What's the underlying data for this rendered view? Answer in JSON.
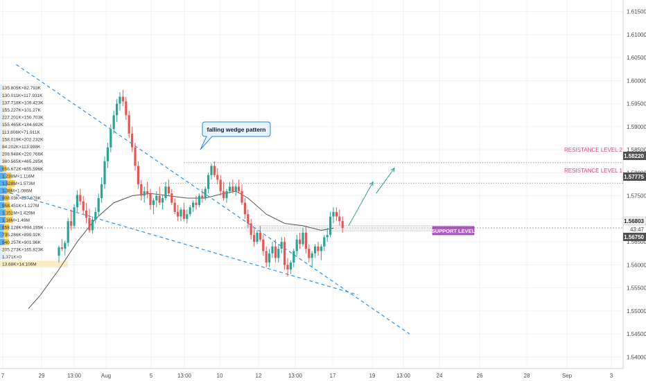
{
  "chart_data": {
    "type": "candlestick",
    "title": "",
    "y_axis": {
      "ticks": [
        "1.61500",
        "1.61000",
        "1.60500",
        "1.60000",
        "1.59500",
        "1.59000",
        "1.58500",
        "1.58000",
        "1.57500",
        "1.57000",
        "1.56500",
        "1.56000",
        "1.55500",
        "1.55000",
        "1.54500",
        "1.54000"
      ],
      "range": [
        1.5375,
        1.6175
      ]
    },
    "x_axis": {
      "ticks": [
        "7",
        "29",
        "13:00",
        "Aug",
        "5",
        "13:00",
        "10",
        "12",
        "13:00",
        "17",
        "19",
        "13:00",
        "24",
        "26",
        "28",
        "Sep",
        "3"
      ]
    },
    "price_labels": {
      "resistance_2": "1.58220",
      "resistance_1": "1.57775",
      "current": "1.56803",
      "countdown": "43:47",
      "low": "1.56750"
    },
    "annotations": {
      "callout": "falling wedge pattern",
      "resistance_2": "RESISTANCE LEVEL 2",
      "resistance_1": "RESISTANCE LEVEL 1",
      "support": "SUPPORT LEVEL"
    },
    "levels": {
      "resistance_2": 1.5822,
      "resistance_1": 1.57775,
      "support": 1.56803
    },
    "volume_profile": [
      "135.805K×82.793K",
      "130.011K×117.931K",
      "137.718K×109.423K",
      "155.227K×101.27K",
      "227.201K×150.703K",
      "155.465K×184.692K",
      "113.806K×71.911K",
      "158.019K×202.232K",
      "84.202K×113.998K",
      "208.948K×220.766K",
      "380.565K×465.285K",
      "656.672K×655.596K",
      "1.238M×1.116M",
      "1.528M×1.573M",
      "1.39M×1.086M",
      "908.03K×897.678K",
      "958.451K×1.127M",
      "1.151M×1.429M",
      "1.16M×1.49M",
      "858.128K×994.195K",
      "735.286K×899.92K",
      "940.257K×901.96K",
      "205.273K×165.823K",
      "1.371K×0",
      "13.68K×14.106M"
    ],
    "colors": {
      "up": "#26a69a",
      "down": "#ef5350",
      "ma": "#555555",
      "trend": "#2196f3",
      "resistance_text": "#e0457b",
      "support_bg": "#9c27b0"
    },
    "candle_series": [
      [
        0,
        1.562,
        1.5642,
        1.5605,
        1.5638
      ],
      [
        1,
        1.5638,
        1.5656,
        1.563,
        1.5635
      ],
      [
        2,
        1.5635,
        1.5653,
        1.562,
        1.5648
      ],
      [
        3,
        1.5648,
        1.5702,
        1.564,
        1.5695
      ],
      [
        4,
        1.5695,
        1.572,
        1.5675,
        1.5685
      ],
      [
        5,
        1.5685,
        1.5732,
        1.5678,
        1.5725
      ],
      [
        6,
        1.5725,
        1.5762,
        1.5715,
        1.5752
      ],
      [
        7,
        1.5752,
        1.5765,
        1.573,
        1.5738
      ],
      [
        8,
        1.5738,
        1.575,
        1.571,
        1.5718
      ],
      [
        9,
        1.5718,
        1.5735,
        1.569,
        1.5702
      ],
      [
        10,
        1.5702,
        1.5722,
        1.567,
        1.5675
      ],
      [
        11,
        1.5675,
        1.5705,
        1.5668,
        1.5698
      ],
      [
        12,
        1.5698,
        1.5725,
        1.569,
        1.5715
      ],
      [
        13,
        1.5715,
        1.5755,
        1.5705,
        1.5745
      ],
      [
        14,
        1.5745,
        1.579,
        1.5735,
        1.5775
      ],
      [
        15,
        1.5775,
        1.5835,
        1.5765,
        1.5825
      ],
      [
        16,
        1.5825,
        1.5865,
        1.581,
        1.5855
      ],
      [
        17,
        1.5855,
        1.5905,
        1.5845,
        1.5895
      ],
      [
        18,
        1.5895,
        1.5935,
        1.5885,
        1.5925
      ],
      [
        19,
        1.5925,
        1.596,
        1.591,
        1.595
      ],
      [
        20,
        1.595,
        1.5975,
        1.5935,
        1.5965
      ],
      [
        21,
        1.5965,
        1.598,
        1.5945,
        1.5955
      ],
      [
        22,
        1.5955,
        1.5965,
        1.5915,
        1.5925
      ],
      [
        23,
        1.5925,
        1.5935,
        1.5875,
        1.5885
      ],
      [
        24,
        1.5885,
        1.59,
        1.5845,
        1.5855
      ],
      [
        25,
        1.5855,
        1.5865,
        1.5805,
        1.5815
      ],
      [
        26,
        1.5815,
        1.5825,
        1.5765,
        1.5775
      ],
      [
        27,
        1.5775,
        1.5785,
        1.574,
        1.575
      ],
      [
        28,
        1.575,
        1.577,
        1.5735,
        1.576
      ],
      [
        29,
        1.576,
        1.578,
        1.5745,
        1.5755
      ],
      [
        30,
        1.5755,
        1.5765,
        1.572,
        1.573
      ],
      [
        31,
        1.573,
        1.5745,
        1.571,
        1.574
      ],
      [
        32,
        1.574,
        1.576,
        1.5725,
        1.575
      ],
      [
        33,
        1.575,
        1.577,
        1.573,
        1.5735
      ],
      [
        34,
        1.5735,
        1.575,
        1.572,
        1.5745
      ],
      [
        35,
        1.5745,
        1.578,
        1.574,
        1.577
      ],
      [
        36,
        1.577,
        1.5785,
        1.575,
        1.5755
      ],
      [
        37,
        1.5755,
        1.5765,
        1.573,
        1.5735
      ],
      [
        38,
        1.5735,
        1.5745,
        1.571,
        1.5715
      ],
      [
        39,
        1.5715,
        1.573,
        1.5695,
        1.5705
      ],
      [
        40,
        1.5705,
        1.5725,
        1.5695,
        1.572
      ],
      [
        41,
        1.572,
        1.5735,
        1.5695,
        1.57
      ],
      [
        42,
        1.57,
        1.572,
        1.569,
        1.571
      ],
      [
        43,
        1.571,
        1.573,
        1.5705,
        1.5725
      ],
      [
        44,
        1.5725,
        1.574,
        1.5715,
        1.5735
      ],
      [
        45,
        1.5735,
        1.575,
        1.572,
        1.573
      ],
      [
        46,
        1.573,
        1.5755,
        1.5725,
        1.575
      ],
      [
        47,
        1.575,
        1.5765,
        1.5735,
        1.5745
      ],
      [
        48,
        1.5745,
        1.577,
        1.574,
        1.5765
      ],
      [
        49,
        1.5765,
        1.58,
        1.5755,
        1.5795
      ],
      [
        50,
        1.5795,
        1.582,
        1.5785,
        1.5815
      ],
      [
        51,
        1.5815,
        1.5825,
        1.579,
        1.5795
      ],
      [
        52,
        1.5795,
        1.581,
        1.5775,
        1.5785
      ],
      [
        53,
        1.5785,
        1.5795,
        1.575,
        1.576
      ],
      [
        54,
        1.576,
        1.578,
        1.574,
        1.5745
      ],
      [
        55,
        1.5745,
        1.5765,
        1.5735,
        1.576
      ],
      [
        56,
        1.576,
        1.578,
        1.5755,
        1.577
      ],
      [
        57,
        1.577,
        1.5785,
        1.5755,
        1.576
      ],
      [
        58,
        1.576,
        1.5775,
        1.575,
        1.577
      ],
      [
        59,
        1.577,
        1.5785,
        1.5755,
        1.576
      ],
      [
        60,
        1.576,
        1.5775,
        1.573,
        1.5735
      ],
      [
        61,
        1.5735,
        1.5745,
        1.57,
        1.571
      ],
      [
        62,
        1.571,
        1.572,
        1.568,
        1.569
      ],
      [
        63,
        1.569,
        1.57,
        1.5655,
        1.5665
      ],
      [
        64,
        1.5665,
        1.568,
        1.564,
        1.565
      ],
      [
        65,
        1.565,
        1.5675,
        1.5645,
        1.567
      ],
      [
        66,
        1.567,
        1.5685,
        1.565,
        1.5655
      ],
      [
        67,
        1.5655,
        1.5665,
        1.562,
        1.563
      ],
      [
        68,
        1.563,
        1.564,
        1.5595,
        1.5605
      ],
      [
        69,
        1.5605,
        1.5635,
        1.5595,
        1.5625
      ],
      [
        70,
        1.5625,
        1.565,
        1.5615,
        1.564
      ],
      [
        71,
        1.564,
        1.5655,
        1.5605,
        1.5615
      ],
      [
        72,
        1.5615,
        1.5645,
        1.5605,
        1.5635
      ],
      [
        73,
        1.5635,
        1.566,
        1.5625,
        1.565
      ],
      [
        74,
        1.565,
        1.566,
        1.559,
        1.56
      ],
      [
        75,
        1.56,
        1.5615,
        1.5575,
        1.559
      ],
      [
        76,
        1.559,
        1.561,
        1.558,
        1.5605
      ],
      [
        77,
        1.5605,
        1.5635,
        1.5595,
        1.563
      ],
      [
        78,
        1.563,
        1.5665,
        1.562,
        1.5655
      ],
      [
        79,
        1.5655,
        1.567,
        1.5635,
        1.5645
      ],
      [
        80,
        1.5645,
        1.568,
        1.564,
        1.567
      ],
      [
        81,
        1.567,
        1.5685,
        1.5625,
        1.5635
      ],
      [
        82,
        1.5635,
        1.5645,
        1.5605,
        1.5615
      ],
      [
        83,
        1.5615,
        1.563,
        1.5595,
        1.5625
      ],
      [
        84,
        1.5625,
        1.5645,
        1.5615,
        1.564
      ],
      [
        85,
        1.564,
        1.565,
        1.562,
        1.563
      ],
      [
        86,
        1.563,
        1.5645,
        1.561,
        1.564
      ],
      [
        87,
        1.564,
        1.5665,
        1.563,
        1.566
      ],
      [
        88,
        1.566,
        1.568,
        1.565,
        1.5665
      ],
      [
        89,
        1.5665,
        1.5715,
        1.566,
        1.5705
      ],
      [
        90,
        1.5705,
        1.5725,
        1.569,
        1.5715
      ],
      [
        91,
        1.5715,
        1.5725,
        1.5695,
        1.5705
      ],
      [
        92,
        1.5705,
        1.572,
        1.5685,
        1.5695
      ],
      [
        93,
        1.5695,
        1.5705,
        1.567,
        1.568
      ]
    ],
    "moving_average": [
      [
        -10,
        1.5505
      ],
      [
        -6,
        1.5535
      ],
      [
        0,
        1.559
      ],
      [
        6,
        1.565
      ],
      [
        12,
        1.57
      ],
      [
        18,
        1.5735
      ],
      [
        24,
        1.575
      ],
      [
        30,
        1.5755
      ],
      [
        36,
        1.575
      ],
      [
        42,
        1.5745
      ],
      [
        48,
        1.5745
      ],
      [
        54,
        1.5755
      ],
      [
        58,
        1.576
      ],
      [
        62,
        1.5745
      ],
      [
        68,
        1.571
      ],
      [
        74,
        1.569
      ],
      [
        80,
        1.5685
      ],
      [
        86,
        1.5675
      ],
      [
        90,
        1.568
      ]
    ],
    "trendlines": [
      {
        "from": [
          -14,
          1.6035
        ],
        "to": [
          115,
          1.545
        ],
        "name": "upper"
      },
      {
        "from": [
          -18,
          1.576
        ],
        "to": [
          98,
          1.5535
        ],
        "name": "lower"
      }
    ],
    "projection_arrows": [
      {
        "from": [
          95,
          1.5685
        ],
        "to": [
          103,
          1.578
        ]
      },
      {
        "from": [
          104,
          1.5755
        ],
        "to": [
          110,
          1.581
        ]
      }
    ]
  }
}
